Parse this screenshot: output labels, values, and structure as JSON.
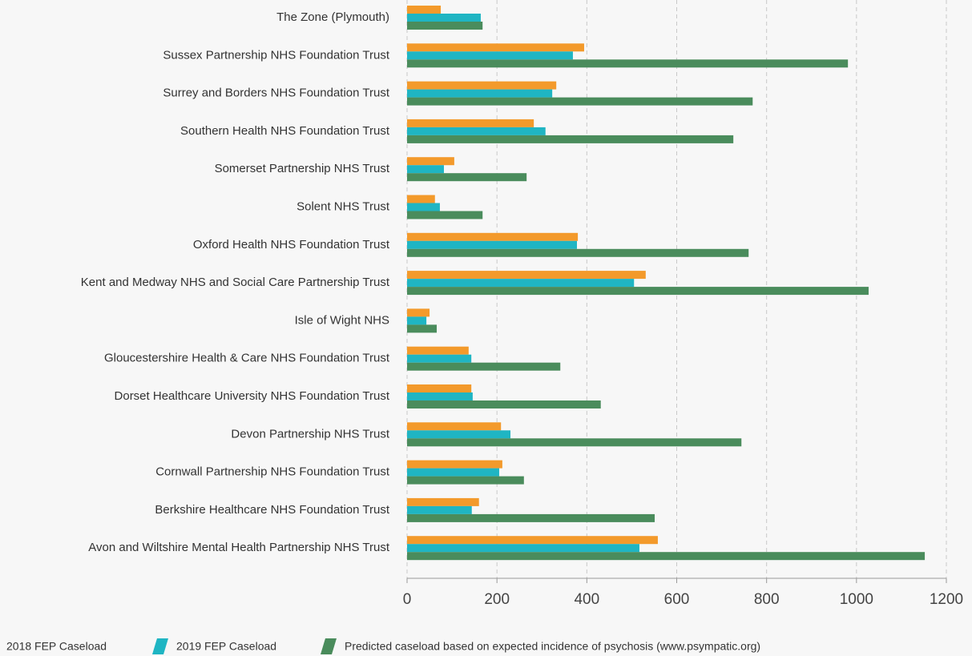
{
  "chart_data": {
    "type": "hbar",
    "categories": [
      "The Zone (Plymouth)",
      "Sussex Partnership NHS Foundation Trust",
      "Surrey and Borders NHS Foundation Trust",
      "Southern Health NHS Foundation Trust",
      "Somerset Partnership NHS Trust",
      "Solent NHS Trust",
      "Oxford Health NHS Foundation Trust",
      "Kent and Medway NHS and Social Care Partnership Trust",
      "Isle of Wight NHS",
      "Gloucestershire Health & Care NHS Foundation Trust",
      "Dorset Healthcare University NHS Foundation Trust",
      "Devon Partnership NHS Trust",
      "Cornwall Partnership NHS Foundation Trust",
      "Berkshire Healthcare NHS Foundation Trust",
      "Avon and Wiltshire Mental Health Partnership NHS Trust"
    ],
    "series": [
      {
        "name": "2018 FEP Caseload",
        "color": "#f39a2b",
        "values": [
          75,
          394,
          332,
          282,
          105,
          62,
          380,
          531,
          50,
          137,
          143,
          209,
          212,
          160,
          558
        ]
      },
      {
        "name": "2019 FEP Caseload",
        "color": "#1fb5c3",
        "values": [
          164,
          369,
          323,
          308,
          82,
          73,
          378,
          505,
          43,
          143,
          146,
          230,
          205,
          144,
          517
        ]
      },
      {
        "name": "Predicted caseload  based on expected incidence of psychosis (www.psympatic.org)",
        "color": "#4a8c5c",
        "values": [
          168,
          981,
          769,
          726,
          266,
          168,
          760,
          1027,
          66,
          341,
          431,
          744,
          260,
          551,
          1152
        ]
      }
    ],
    "xlim": [
      0,
      1200
    ],
    "xticks": [
      0,
      200,
      400,
      600,
      800,
      1000,
      1200
    ],
    "grid": true
  }
}
